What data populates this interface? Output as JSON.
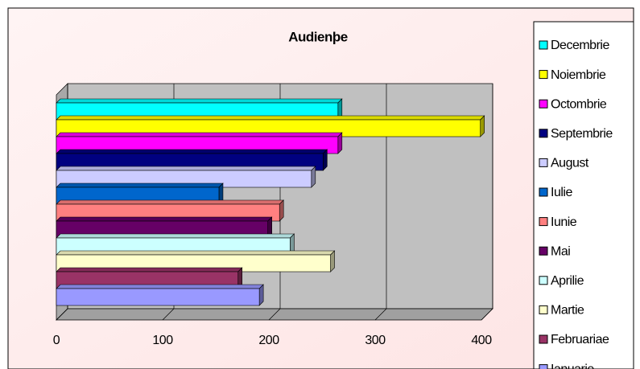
{
  "chart_data": {
    "type": "bar",
    "orientation": "horizontal",
    "title": "Audienþe",
    "categories": [
      "Ianuarie",
      "Februariae",
      "Martie",
      "Aprilie",
      "Mai",
      "Iunie",
      "Iulie",
      "August",
      "Septembrie",
      "Octombrie",
      "Noiembrie",
      "Decembrie"
    ],
    "values": [
      191,
      171,
      258,
      220,
      199,
      210,
      153,
      240,
      251,
      265,
      399,
      265
    ],
    "colors": [
      "#9999ff",
      "#993366",
      "#ffffcc",
      "#ccffff",
      "#660066",
      "#ff8080",
      "#0066cc",
      "#ccccff",
      "#000080",
      "#ff00ff",
      "#ffff00",
      "#00ffff"
    ],
    "xlim": [
      0,
      400
    ],
    "xticks": [
      0,
      100,
      200,
      300,
      400
    ],
    "grid": true,
    "legend": "right"
  }
}
